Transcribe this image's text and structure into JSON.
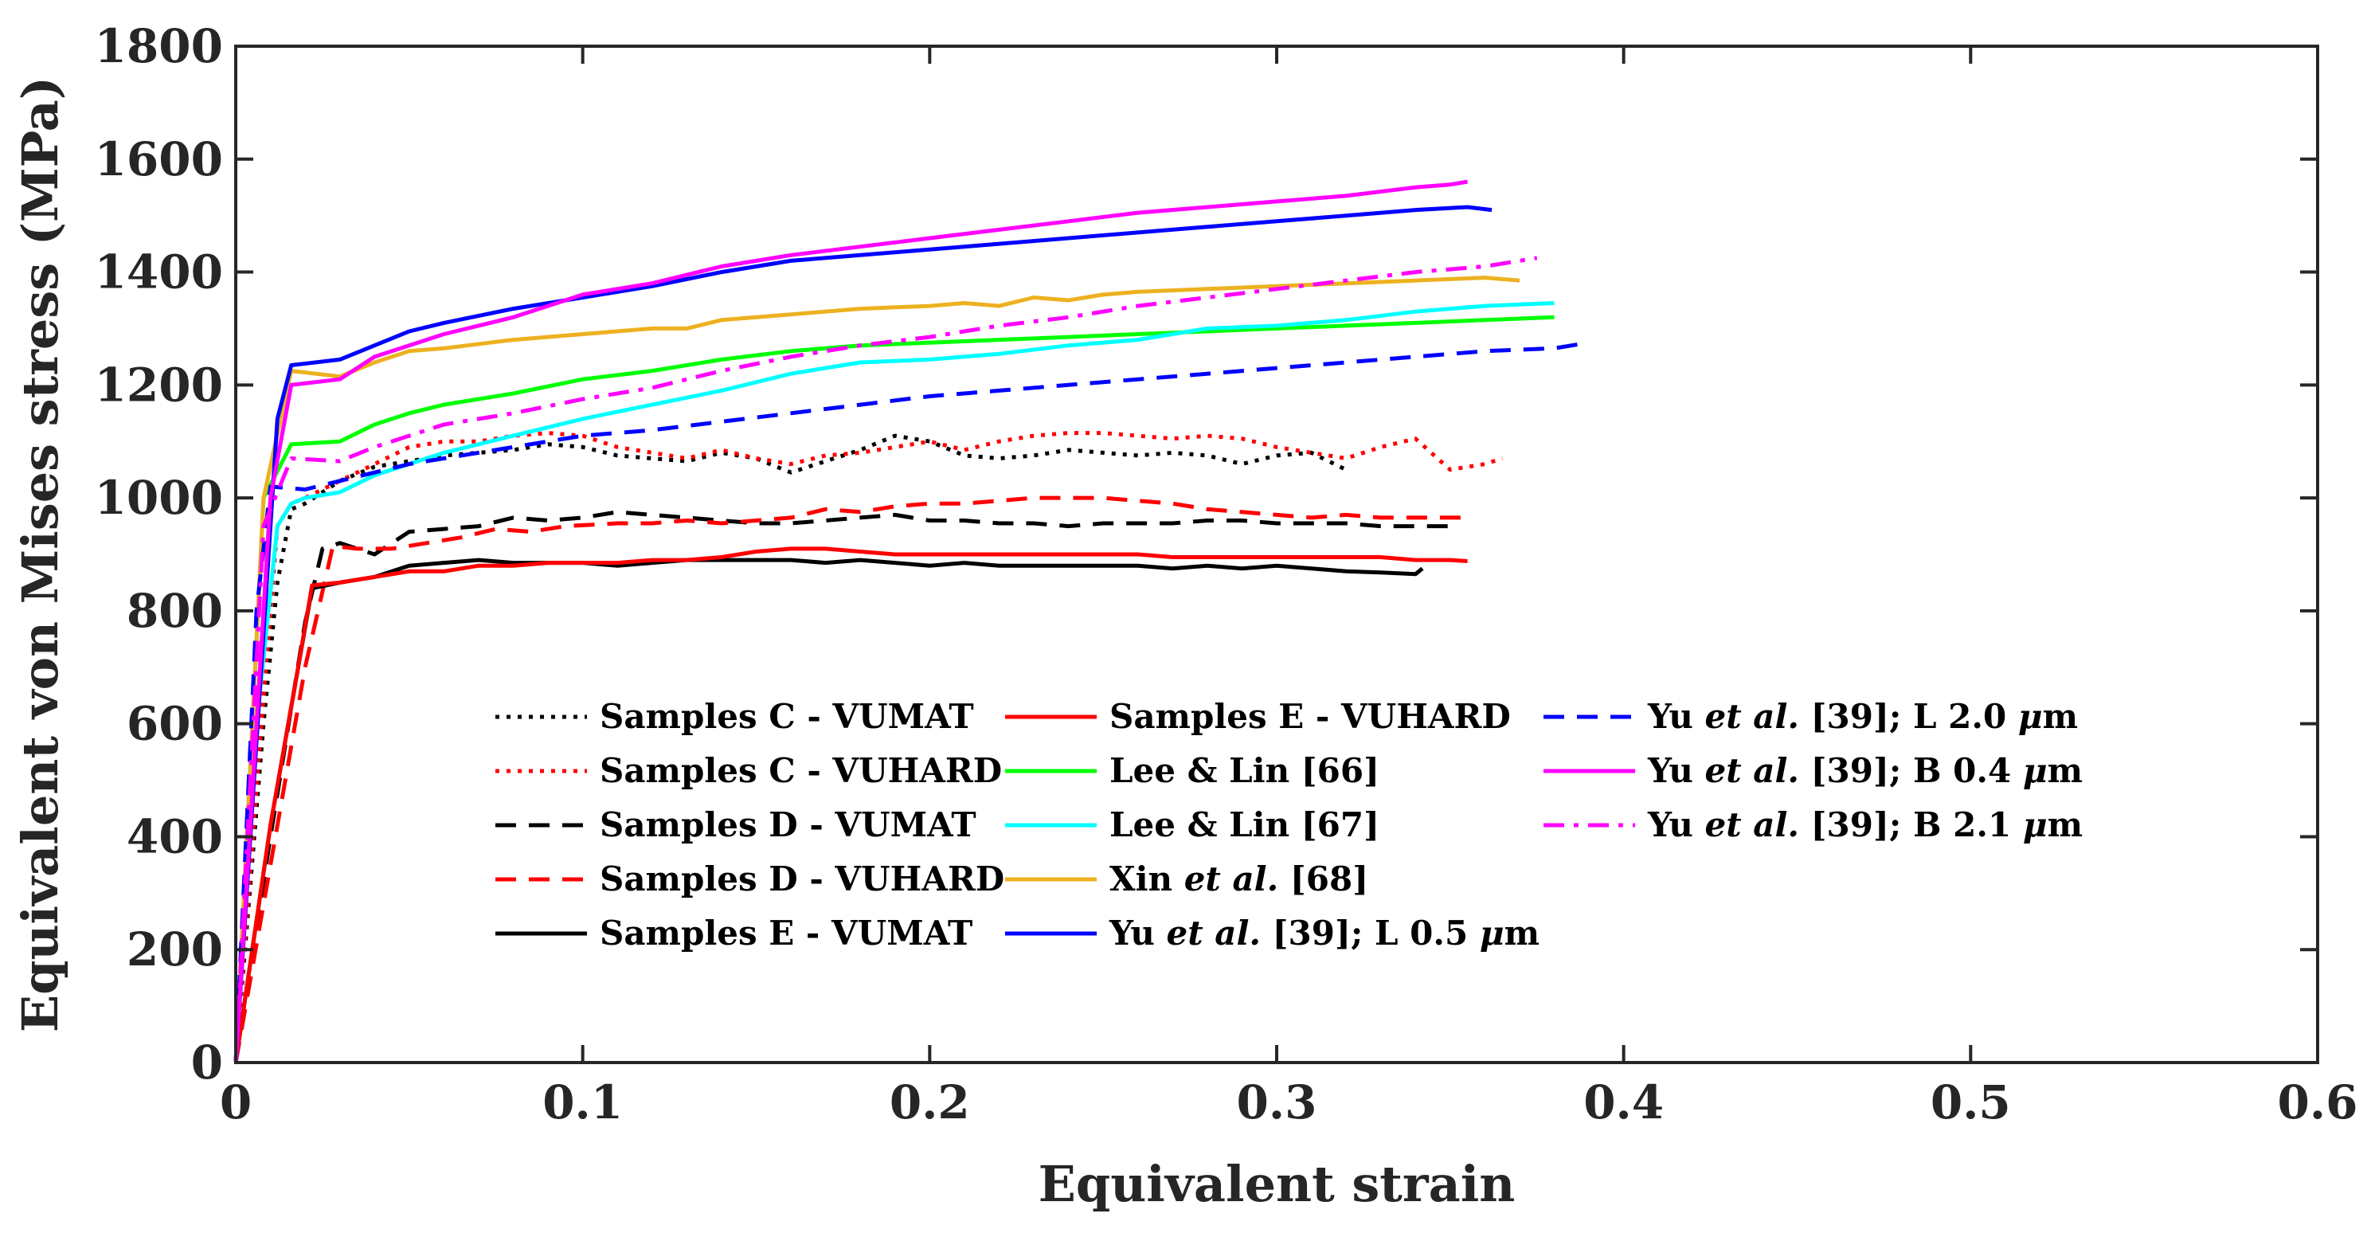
{
  "chart_data": {
    "type": "line",
    "title": "",
    "xlabel": "Equivalent strain",
    "ylabel": "Equivalent von Mises stress (MPa)",
    "xlim": [
      0,
      0.6
    ],
    "ylim": [
      0,
      1800
    ],
    "xticks": [
      "0",
      "0.1",
      "0.2",
      "0.3",
      "0.4",
      "0.5",
      "0.6"
    ],
    "yticks": [
      "0",
      "200",
      "400",
      "600",
      "800",
      "1000",
      "1200",
      "1400",
      "1600",
      "1800"
    ],
    "grid": false,
    "legend_position": "bottom-center",
    "series": [
      {
        "name": "Samples C - VUMAT",
        "label_parts": [
          {
            "t": "Samples C - VUMAT"
          }
        ],
        "color": "#000000",
        "dash": "dot",
        "x": [
          0,
          0.008,
          0.012,
          0.016,
          0.02,
          0.03,
          0.04,
          0.05,
          0.06,
          0.07,
          0.08,
          0.09,
          0.1,
          0.11,
          0.12,
          0.13,
          0.14,
          0.15,
          0.16,
          0.17,
          0.18,
          0.19,
          0.2,
          0.21,
          0.22,
          0.23,
          0.24,
          0.25,
          0.26,
          0.27,
          0.28,
          0.29,
          0.3,
          0.31,
          0.32
        ],
        "y": [
          0,
          600,
          850,
          980,
          990,
          1030,
          1055,
          1065,
          1075,
          1080,
          1085,
          1095,
          1090,
          1075,
          1070,
          1065,
          1080,
          1070,
          1045,
          1065,
          1085,
          1110,
          1100,
          1075,
          1070,
          1075,
          1085,
          1080,
          1075,
          1080,
          1075,
          1060,
          1075,
          1080,
          1050
        ]
      },
      {
        "name": "Samples C - VUHARD",
        "label_parts": [
          {
            "t": "Samples C - VUHARD"
          }
        ],
        "color": "#ff0000",
        "dash": "dot",
        "x": [
          0,
          0.008,
          0.012,
          0.016,
          0.02,
          0.03,
          0.04,
          0.05,
          0.06,
          0.07,
          0.08,
          0.09,
          0.1,
          0.11,
          0.12,
          0.13,
          0.14,
          0.15,
          0.16,
          0.17,
          0.18,
          0.19,
          0.2,
          0.21,
          0.22,
          0.23,
          0.24,
          0.25,
          0.26,
          0.27,
          0.28,
          0.29,
          0.3,
          0.31,
          0.32,
          0.33,
          0.34,
          0.35,
          0.36,
          0.365
        ],
        "y": [
          0,
          650,
          950,
          990,
          1000,
          1030,
          1060,
          1090,
          1100,
          1100,
          1110,
          1115,
          1110,
          1090,
          1080,
          1070,
          1085,
          1070,
          1060,
          1075,
          1080,
          1090,
          1100,
          1085,
          1100,
          1110,
          1115,
          1115,
          1110,
          1105,
          1110,
          1105,
          1090,
          1080,
          1070,
          1090,
          1105,
          1050,
          1060,
          1070
        ]
      },
      {
        "name": "Samples D - VUMAT",
        "label_parts": [
          {
            "t": "Samples D - VUMAT"
          }
        ],
        "color": "#000000",
        "dash": "dash",
        "x": [
          0,
          0.01,
          0.02,
          0.025,
          0.03,
          0.04,
          0.05,
          0.06,
          0.07,
          0.08,
          0.09,
          0.1,
          0.11,
          0.12,
          0.13,
          0.14,
          0.15,
          0.16,
          0.17,
          0.18,
          0.19,
          0.2,
          0.21,
          0.22,
          0.23,
          0.24,
          0.25,
          0.26,
          0.27,
          0.28,
          0.29,
          0.3,
          0.31,
          0.32,
          0.33,
          0.34,
          0.35
        ],
        "y": [
          0,
          400,
          780,
          910,
          920,
          900,
          940,
          945,
          950,
          965,
          960,
          965,
          975,
          970,
          965,
          960,
          955,
          955,
          960,
          965,
          970,
          960,
          960,
          955,
          955,
          950,
          955,
          955,
          955,
          960,
          960,
          955,
          955,
          955,
          950,
          950,
          950
        ]
      },
      {
        "name": "Samples D - VUHARD",
        "label_parts": [
          {
            "t": "Samples D - VUHARD"
          }
        ],
        "color": "#ff0000",
        "dash": "dash",
        "x": [
          0,
          0.01,
          0.02,
          0.028,
          0.035,
          0.045,
          0.055,
          0.065,
          0.075,
          0.085,
          0.095,
          0.11,
          0.12,
          0.13,
          0.14,
          0.15,
          0.16,
          0.17,
          0.18,
          0.19,
          0.2,
          0.21,
          0.22,
          0.23,
          0.24,
          0.25,
          0.26,
          0.27,
          0.28,
          0.29,
          0.3,
          0.31,
          0.32,
          0.33,
          0.34,
          0.35,
          0.355
        ],
        "y": [
          0,
          350,
          700,
          915,
          910,
          910,
          920,
          930,
          945,
          940,
          950,
          955,
          955,
          960,
          955,
          960,
          965,
          980,
          975,
          985,
          990,
          990,
          995,
          1000,
          1000,
          1000,
          995,
          990,
          980,
          975,
          970,
          965,
          970,
          965,
          965,
          965,
          965
        ]
      },
      {
        "name": "Samples E - VUMAT",
        "label_parts": [
          {
            "t": "Samples E - VUMAT"
          }
        ],
        "color": "#000000",
        "dash": "solid",
        "x": [
          0,
          0.01,
          0.018,
          0.022,
          0.03,
          0.04,
          0.05,
          0.06,
          0.07,
          0.08,
          0.09,
          0.1,
          0.11,
          0.12,
          0.13,
          0.14,
          0.15,
          0.16,
          0.17,
          0.18,
          0.19,
          0.2,
          0.21,
          0.22,
          0.23,
          0.24,
          0.25,
          0.26,
          0.27,
          0.28,
          0.29,
          0.3,
          0.31,
          0.32,
          0.33,
          0.34,
          0.342
        ],
        "y": [
          0,
          420,
          700,
          840,
          850,
          860,
          880,
          885,
          890,
          885,
          885,
          885,
          880,
          885,
          890,
          890,
          890,
          890,
          885,
          890,
          885,
          880,
          885,
          880,
          880,
          880,
          880,
          880,
          875,
          880,
          875,
          880,
          875,
          870,
          868,
          865,
          875
        ]
      },
      {
        "name": "Samples E - VUHARD",
        "label_parts": [
          {
            "t": "Samples E - VUHARD"
          }
        ],
        "color": "#ff0000",
        "dash": "solid",
        "x": [
          0,
          0.01,
          0.018,
          0.022,
          0.03,
          0.04,
          0.05,
          0.06,
          0.07,
          0.08,
          0.09,
          0.1,
          0.11,
          0.12,
          0.13,
          0.14,
          0.15,
          0.16,
          0.17,
          0.18,
          0.19,
          0.2,
          0.21,
          0.22,
          0.23,
          0.24,
          0.25,
          0.26,
          0.27,
          0.28,
          0.29,
          0.3,
          0.31,
          0.32,
          0.33,
          0.34,
          0.35,
          0.355
        ],
        "y": [
          0,
          420,
          700,
          845,
          850,
          860,
          870,
          870,
          880,
          880,
          885,
          885,
          885,
          890,
          890,
          895,
          905,
          910,
          910,
          905,
          900,
          900,
          900,
          900,
          900,
          900,
          900,
          900,
          895,
          895,
          895,
          895,
          895,
          895,
          895,
          890,
          890,
          888
        ]
      },
      {
        "name": "Lee & Lin [66]",
        "label_parts": [
          {
            "t": "Lee & Lin [66]"
          }
        ],
        "color": "#00ff00",
        "dash": "solid",
        "x": [
          0,
          0.008,
          0.016,
          0.03,
          0.04,
          0.05,
          0.06,
          0.08,
          0.1,
          0.12,
          0.14,
          0.16,
          0.18,
          0.2,
          0.22,
          0.24,
          0.26,
          0.28,
          0.3,
          0.32,
          0.34,
          0.36,
          0.38
        ],
        "y": [
          0,
          1000,
          1095,
          1100,
          1130,
          1150,
          1165,
          1185,
          1210,
          1225,
          1245,
          1260,
          1270,
          1275,
          1280,
          1285,
          1290,
          1295,
          1300,
          1305,
          1310,
          1315,
          1320
        ]
      },
      {
        "name": "Lee & Lin [67]",
        "label_parts": [
          {
            "t": "Lee & Lin [67]"
          }
        ],
        "color": "#00ffff",
        "dash": "solid",
        "x": [
          0,
          0.006,
          0.012,
          0.016,
          0.02,
          0.03,
          0.04,
          0.06,
          0.08,
          0.1,
          0.12,
          0.14,
          0.16,
          0.18,
          0.2,
          0.22,
          0.24,
          0.26,
          0.28,
          0.3,
          0.32,
          0.34,
          0.36,
          0.38
        ],
        "y": [
          0,
          600,
          950,
          990,
          1000,
          1010,
          1040,
          1080,
          1110,
          1140,
          1165,
          1190,
          1220,
          1240,
          1245,
          1255,
          1270,
          1280,
          1300,
          1305,
          1315,
          1330,
          1340,
          1345
        ]
      },
      {
        "name": "Xin et al. [68]",
        "label_parts": [
          {
            "t": "Xin "
          },
          {
            "t": "et al.",
            "i": true
          },
          {
            "t": " [68]"
          }
        ],
        "color": "#edb120",
        "dash": "solid",
        "x": [
          0,
          0.008,
          0.016,
          0.03,
          0.04,
          0.05,
          0.06,
          0.08,
          0.1,
          0.12,
          0.13,
          0.14,
          0.16,
          0.18,
          0.2,
          0.21,
          0.22,
          0.23,
          0.24,
          0.25,
          0.26,
          0.28,
          0.3,
          0.32,
          0.34,
          0.36,
          0.37
        ],
        "y": [
          0,
          1000,
          1225,
          1215,
          1240,
          1260,
          1265,
          1280,
          1290,
          1300,
          1300,
          1315,
          1325,
          1335,
          1340,
          1345,
          1340,
          1355,
          1350,
          1360,
          1365,
          1370,
          1375,
          1380,
          1385,
          1390,
          1385
        ]
      },
      {
        "name": "Yu et al. [39]; L 0.5 µm",
        "label_parts": [
          {
            "t": "Yu "
          },
          {
            "t": "et al.",
            "i": true
          },
          {
            "t": " [39]; L 0.5 "
          },
          {
            "t": "μ",
            "i": true
          },
          {
            "t": "m"
          }
        ],
        "color": "#0000ff",
        "dash": "solid",
        "x": [
          0,
          0.012,
          0.016,
          0.03,
          0.04,
          0.05,
          0.06,
          0.08,
          0.1,
          0.12,
          0.14,
          0.16,
          0.18,
          0.2,
          0.22,
          0.24,
          0.26,
          0.28,
          0.3,
          0.32,
          0.34,
          0.355,
          0.362
        ],
        "y": [
          0,
          1140,
          1235,
          1245,
          1270,
          1295,
          1310,
          1335,
          1355,
          1375,
          1400,
          1420,
          1430,
          1440,
          1450,
          1460,
          1470,
          1480,
          1490,
          1500,
          1510,
          1515,
          1510
        ]
      },
      {
        "name": "Yu et al. [39]; L 2.0 µm",
        "label_parts": [
          {
            "t": "Yu "
          },
          {
            "t": "et al.",
            "i": true
          },
          {
            "t": " [39]; L 2.0 "
          },
          {
            "t": "μ",
            "i": true
          },
          {
            "t": "m"
          }
        ],
        "color": "#0000ff",
        "dash": "dash",
        "x": [
          0,
          0.006,
          0.01,
          0.02,
          0.03,
          0.05,
          0.07,
          0.1,
          0.12,
          0.14,
          0.16,
          0.18,
          0.2,
          0.22,
          0.24,
          0.26,
          0.28,
          0.3,
          0.32,
          0.34,
          0.36,
          0.38,
          0.39
        ],
        "y": [
          0,
          800,
          1020,
          1015,
          1030,
          1060,
          1080,
          1110,
          1120,
          1135,
          1150,
          1165,
          1180,
          1190,
          1200,
          1210,
          1220,
          1230,
          1240,
          1250,
          1260,
          1265,
          1275
        ]
      },
      {
        "name": "Yu et al. [39]; B 0.4 µm",
        "label_parts": [
          {
            "t": "Yu "
          },
          {
            "t": "et al.",
            "i": true
          },
          {
            "t": " [39]; B 0.4 "
          },
          {
            "t": "μ",
            "i": true
          },
          {
            "t": "m"
          }
        ],
        "color": "#ff00ff",
        "dash": "solid",
        "x": [
          0,
          0.01,
          0.016,
          0.03,
          0.04,
          0.05,
          0.06,
          0.08,
          0.1,
          0.12,
          0.14,
          0.16,
          0.18,
          0.2,
          0.22,
          0.24,
          0.26,
          0.28,
          0.3,
          0.32,
          0.34,
          0.35,
          0.355
        ],
        "y": [
          0,
          1000,
          1200,
          1210,
          1250,
          1270,
          1290,
          1320,
          1360,
          1380,
          1410,
          1430,
          1445,
          1460,
          1475,
          1490,
          1505,
          1515,
          1525,
          1535,
          1550,
          1555,
          1560
        ]
      },
      {
        "name": "Yu et al. [39]; B 2.1 µm",
        "label_parts": [
          {
            "t": "Yu "
          },
          {
            "t": "et al.",
            "i": true
          },
          {
            "t": " [39]; B 2.1 "
          },
          {
            "t": "μ",
            "i": true
          },
          {
            "t": "m"
          }
        ],
        "color": "#ff00ff",
        "dash": "dashdot",
        "x": [
          0,
          0.008,
          0.016,
          0.03,
          0.04,
          0.05,
          0.06,
          0.08,
          0.1,
          0.12,
          0.14,
          0.16,
          0.18,
          0.2,
          0.22,
          0.24,
          0.26,
          0.28,
          0.3,
          0.32,
          0.34,
          0.36,
          0.375
        ],
        "y": [
          0,
          950,
          1070,
          1065,
          1090,
          1110,
          1130,
          1150,
          1175,
          1195,
          1225,
          1250,
          1270,
          1285,
          1305,
          1320,
          1340,
          1355,
          1370,
          1385,
          1400,
          1410,
          1425
        ]
      }
    ]
  }
}
